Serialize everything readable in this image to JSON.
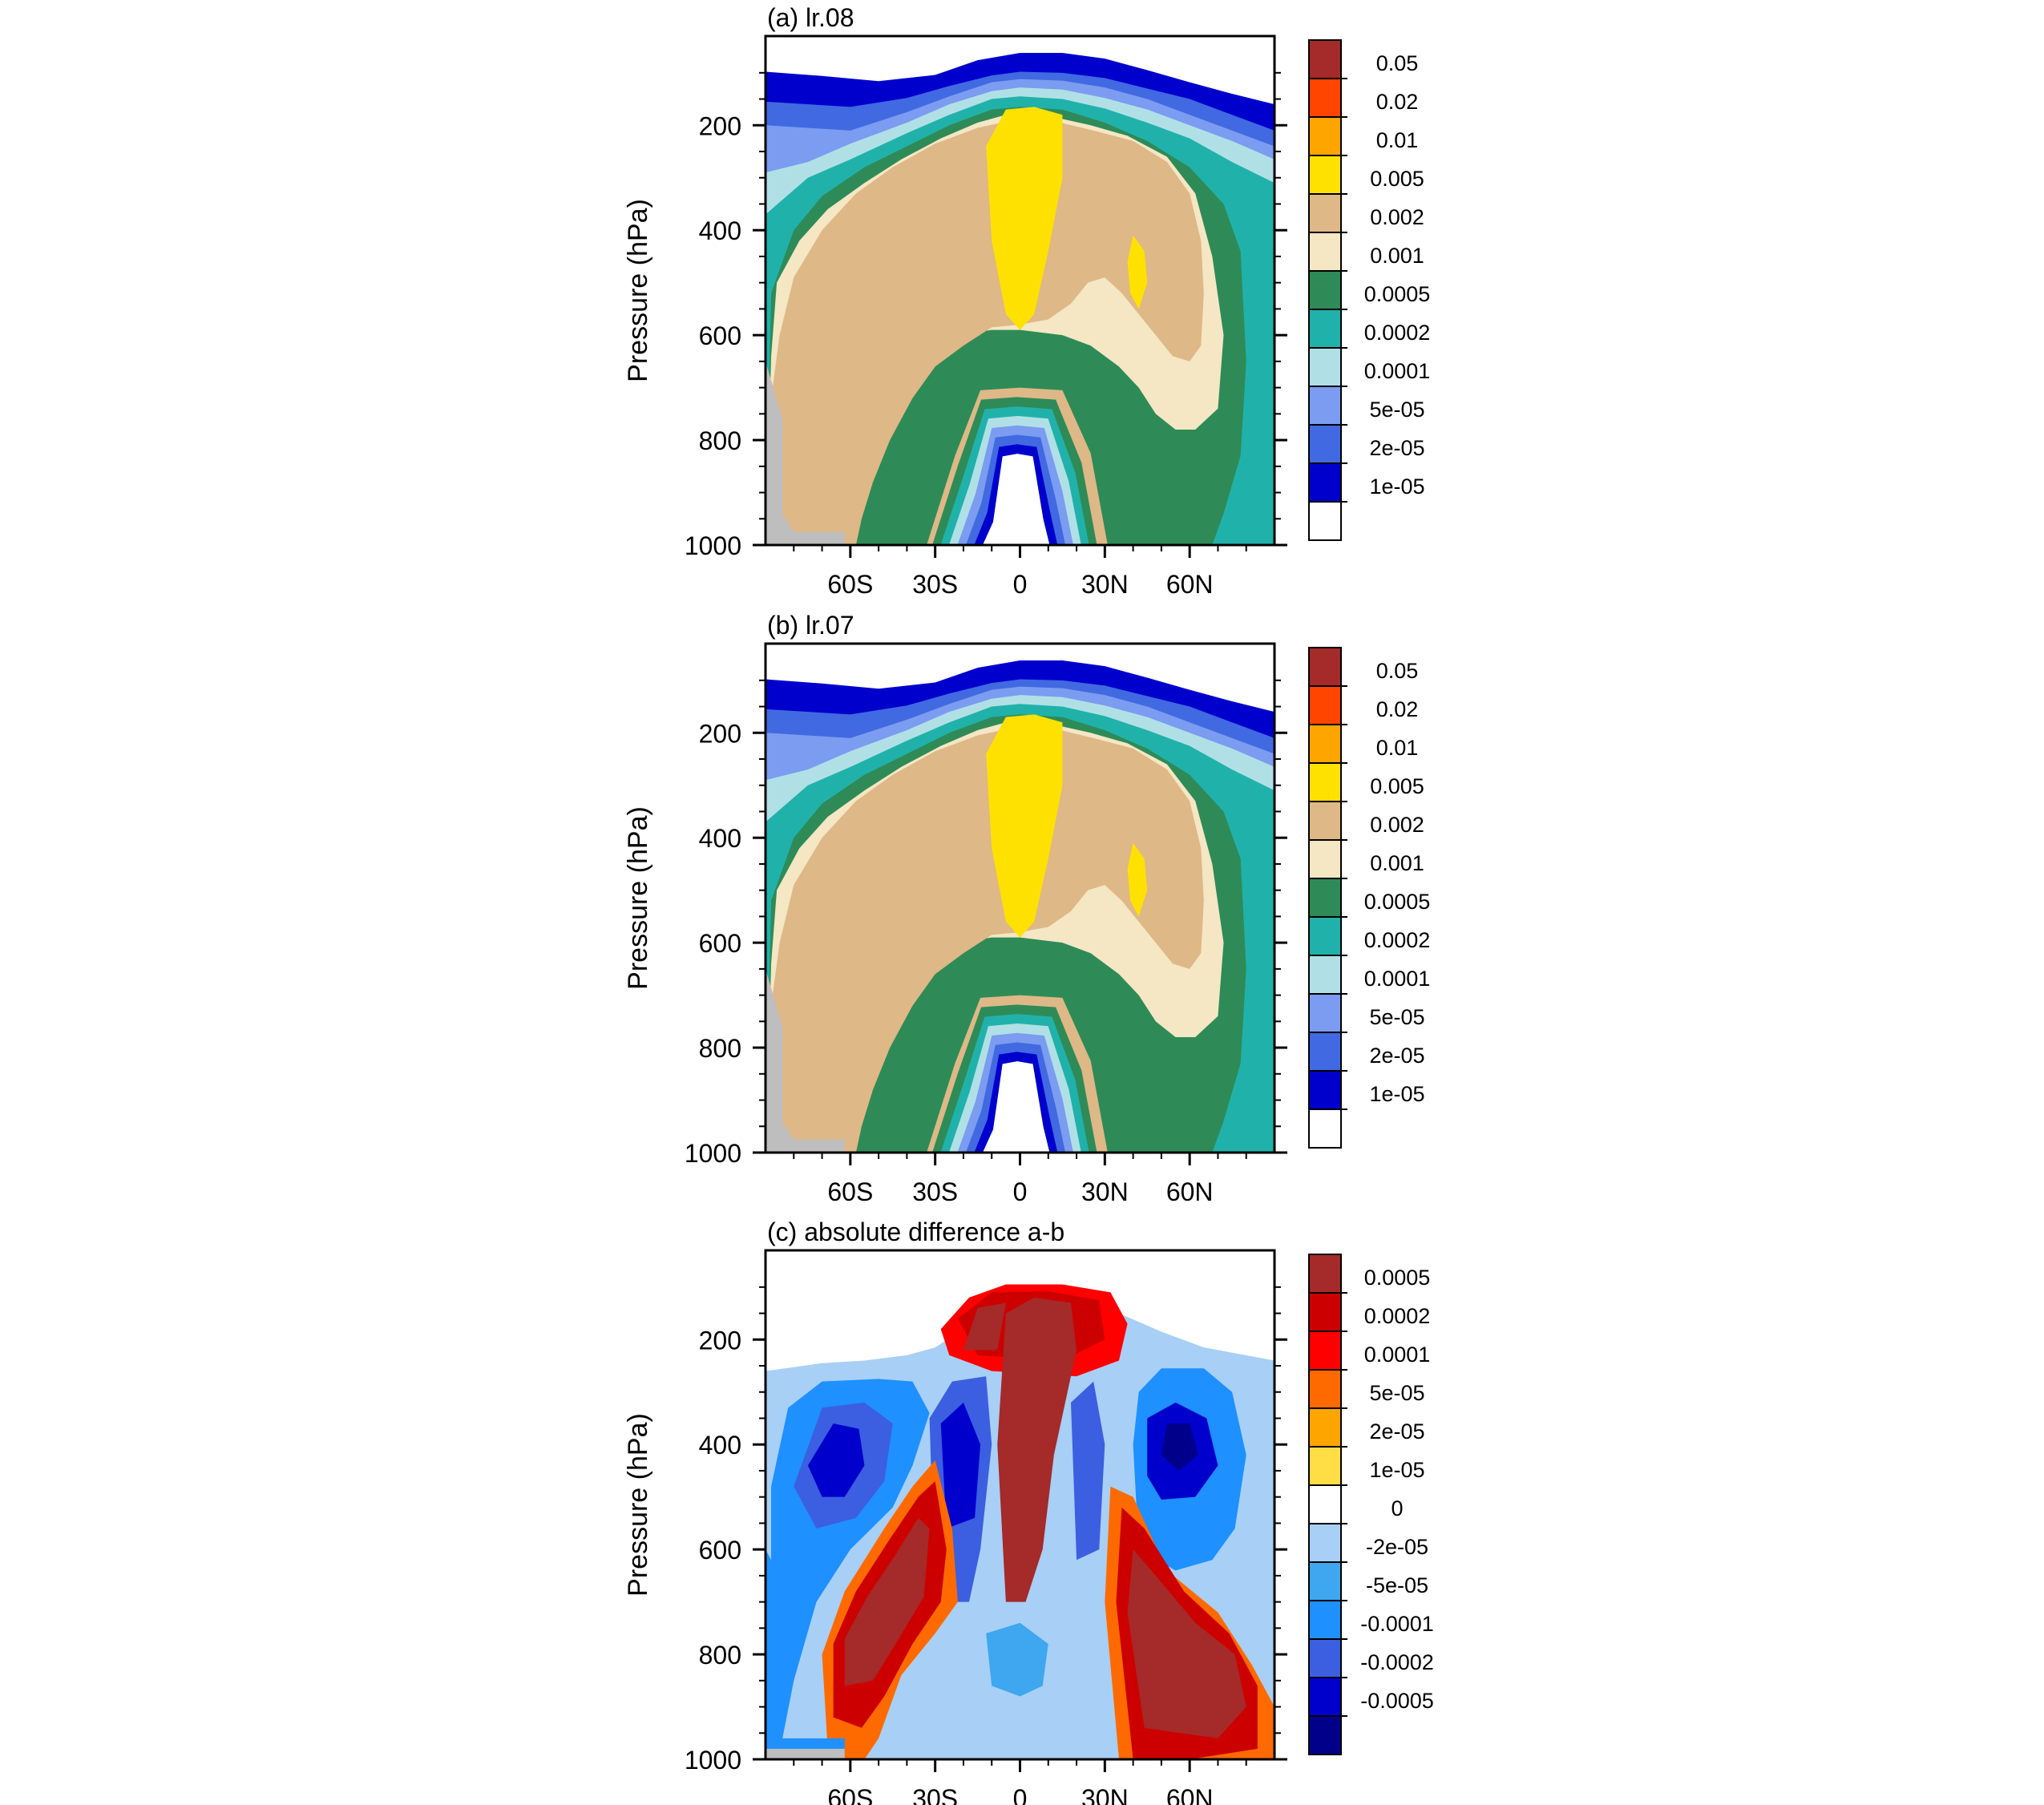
{
  "chart_data": [
    {
      "type": "heatmap",
      "title": "(a) lr.08",
      "ylabel": "Pressure (hPa)",
      "xlabel": "",
      "yticks": [
        "200",
        "400",
        "600",
        "800",
        "1000"
      ],
      "xticks": [
        "60S",
        "30S",
        "0",
        "30N",
        "60N"
      ],
      "x_range": [
        -90,
        90
      ],
      "y_range": [
        1000,
        30
      ],
      "colorbar_labels": [
        "0.05",
        "0.02",
        "0.01",
        "0.005",
        "0.002",
        "0.001",
        "0.0005",
        "0.0002",
        "0.0001",
        "5e-05",
        "2e-05",
        "1e-05"
      ],
      "colorbar_colors": [
        "#a52a2a",
        "#ff4500",
        "#ffa500",
        "#ffe100",
        "#deb887",
        "#f5e6c4",
        "#2e8b57",
        "#20b2aa",
        "#b0e0e6",
        "#7b9cf0",
        "#4169e1",
        "#0000cd",
        "#ffffff"
      ],
      "mountain_color": "#bebebe"
    },
    {
      "type": "heatmap",
      "title": "(b) lr.07",
      "ylabel": "Pressure (hPa)",
      "xlabel": "",
      "yticks": [
        "200",
        "400",
        "600",
        "800",
        "1000"
      ],
      "xticks": [
        "60S",
        "30S",
        "0",
        "30N",
        "60N"
      ],
      "x_range": [
        -90,
        90
      ],
      "y_range": [
        1000,
        30
      ],
      "colorbar_labels": [
        "0.05",
        "0.02",
        "0.01",
        "0.005",
        "0.002",
        "0.001",
        "0.0005",
        "0.0002",
        "0.0001",
        "5e-05",
        "2e-05",
        "1e-05"
      ],
      "colorbar_colors": [
        "#a52a2a",
        "#ff4500",
        "#ffa500",
        "#ffe100",
        "#deb887",
        "#f5e6c4",
        "#2e8b57",
        "#20b2aa",
        "#b0e0e6",
        "#7b9cf0",
        "#4169e1",
        "#0000cd",
        "#ffffff"
      ],
      "mountain_color": "#bebebe"
    },
    {
      "type": "heatmap",
      "title": "(c) absolute difference a-b",
      "ylabel": "Pressure (hPa)",
      "xlabel": "",
      "yticks": [
        "200",
        "400",
        "600",
        "800",
        "1000"
      ],
      "xticks": [
        "60S",
        "30S",
        "0",
        "30N",
        "60N"
      ],
      "x_range": [
        -90,
        90
      ],
      "y_range": [
        1000,
        30
      ],
      "colorbar_labels": [
        "0.0005",
        "0.0002",
        "0.0001",
        "5e-05",
        "2e-05",
        "1e-05",
        "0",
        "-2e-05",
        "-5e-05",
        "-0.0001",
        "-0.0002",
        "-0.0005"
      ],
      "colorbar_colors": [
        "#a52a2a",
        "#cd0000",
        "#ff0000",
        "#ff6a00",
        "#ffa500",
        "#ffdd44",
        "#ffffff",
        "#a8cff5",
        "#3ea7f0",
        "#1e90ff",
        "#3b5fe0",
        "#0000cd",
        "#00008b"
      ],
      "mountain_color": "#bebebe"
    }
  ]
}
